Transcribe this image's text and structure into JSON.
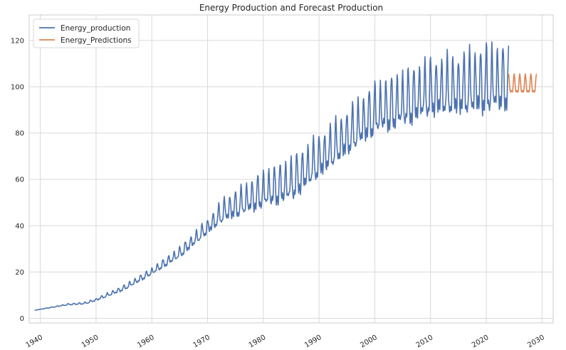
{
  "chart_data": {
    "type": "line",
    "title": "Energy Production and Forecast Production",
    "xlabel": "",
    "ylabel": "",
    "xlim": [
      1938,
      2032
    ],
    "ylim": [
      -2,
      131
    ],
    "x_ticks": [
      1940,
      1950,
      1960,
      1970,
      1980,
      1990,
      2000,
      2010,
      2020,
      2030
    ],
    "y_ticks": [
      0,
      20,
      40,
      60,
      80,
      100,
      120
    ],
    "grid": true,
    "legend_position": "top-left",
    "series": [
      {
        "name": "Energy_production",
        "color": "#4c72b0",
        "sampling": "monthly",
        "start": 1939.0,
        "end": 2024.0,
        "trend_x": [
          1939,
          1945,
          1948,
          1950,
          1955,
          1960,
          1965,
          1970,
          1973,
          1975,
          1980,
          1985,
          1990,
          1995,
          2000,
          2005,
          2010,
          2015,
          2020,
          2024
        ],
        "trend_y": [
          3.5,
          6,
          6.5,
          8,
          13,
          20,
          28,
          39,
          46,
          48,
          54,
          58,
          68,
          78,
          88,
          92,
          97,
          98,
          100,
          101
        ],
        "amplitude_x": [
          1939,
          1950,
          1955,
          1960,
          1965,
          1970,
          1973,
          1980,
          1985,
          1990,
          1995,
          2000,
          2005,
          2010,
          2015,
          2020,
          2024
        ],
        "amplitude_y": [
          0,
          0.6,
          1.2,
          1.6,
          2.5,
          3.5,
          5.5,
          8.5,
          10,
          10,
          10.5,
          12,
          13,
          13.5,
          14,
          16,
          15
        ]
      },
      {
        "name": "Energy_Predictions",
        "color": "#dd8452",
        "sampling": "monthly",
        "start": 2024.0,
        "end": 2029.0,
        "mean": 100.3,
        "amplitude": 4.8
      }
    ]
  }
}
